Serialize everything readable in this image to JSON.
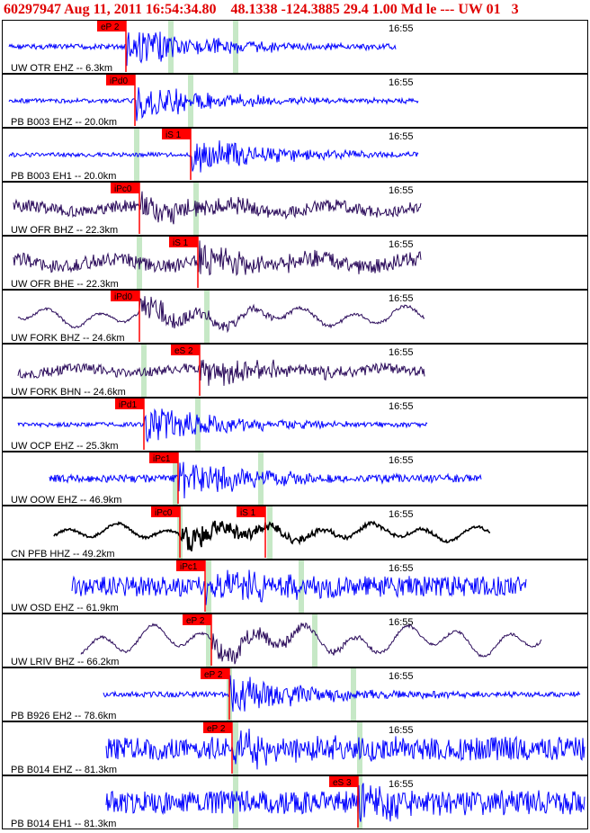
{
  "header": {
    "event_id": "60297947",
    "datetime": "Aug 11, 2011 16:54:34.80",
    "lat": "48.1338",
    "lon": "-124.3885",
    "depth": "29.4",
    "magnitude": "1.00",
    "mag_type": "Md",
    "type": "le",
    "dashes": "---",
    "network": "UW",
    "version": "01",
    "extra": "3"
  },
  "colors": {
    "header_text": "#e00000",
    "trace_blue": "#0000ff",
    "trace_navy": "#2a0a5a",
    "trace_black": "#000000",
    "pick_box": "#ff0000",
    "window_green": "#c6e8c6",
    "panel_border": "#000000"
  },
  "traces": [
    {
      "label": "UW OTR EHZ -- 6.3km",
      "time_label": "16:55",
      "color": "blue",
      "pick": "eP 2",
      "second_pick": ""
    },
    {
      "label": "PB B003 EHZ -- 20.0km",
      "time_label": "16:55",
      "color": "blue",
      "pick": "iPd0",
      "second_pick": ""
    },
    {
      "label": "PB B003 EH1 -- 20.0km",
      "time_label": "16:55",
      "color": "blue",
      "pick": "iS 1",
      "second_pick": ""
    },
    {
      "label": "UW OFR BHZ -- 22.3km",
      "time_label": "16:55",
      "color": "navy",
      "pick": "iPc0",
      "second_pick": ""
    },
    {
      "label": "UW OFR BHE -- 22.3km",
      "time_label": "16:55",
      "color": "navy",
      "pick": "iS 1",
      "second_pick": ""
    },
    {
      "label": "UW FORK BHZ -- 24.6km",
      "time_label": "16:55",
      "color": "navy",
      "pick": "iPd0",
      "second_pick": ""
    },
    {
      "label": "UW FORK BHN -- 24.6km",
      "time_label": "16:55",
      "color": "navy",
      "pick": "eS 2",
      "second_pick": ""
    },
    {
      "label": "UW OCP EHZ -- 25.3km",
      "time_label": "16:55",
      "color": "blue",
      "pick": "iPd1",
      "second_pick": ""
    },
    {
      "label": "UW OOW EHZ -- 46.9km",
      "time_label": "16:55",
      "color": "blue",
      "pick": "iPc1",
      "second_pick": ""
    },
    {
      "label": "CN PFB HHZ -- 49.2km",
      "time_label": "16:55",
      "color": "black",
      "pick": "iPc0",
      "second_pick": "iS 1"
    },
    {
      "label": "UW OSD EHZ -- 61.9km",
      "time_label": "16:55",
      "color": "blue",
      "pick": "iPc1",
      "second_pick": ""
    },
    {
      "label": "UW LRIV BHZ -- 66.2km",
      "time_label": "16:55",
      "color": "navy",
      "pick": "eP 2",
      "second_pick": ""
    },
    {
      "label": "PB B926 EH2 -- 78.6km",
      "time_label": "16:55",
      "color": "blue",
      "pick": "eP 2",
      "second_pick": ""
    },
    {
      "label": "PB B014 EHZ -- 81.3km",
      "time_label": "16:55",
      "color": "blue",
      "pick": "eP 2",
      "second_pick": ""
    },
    {
      "label": "PB B014 EH1 -- 81.3km",
      "time_label": "16:55",
      "color": "blue",
      "pick": "eS 3",
      "second_pick": ""
    }
  ]
}
